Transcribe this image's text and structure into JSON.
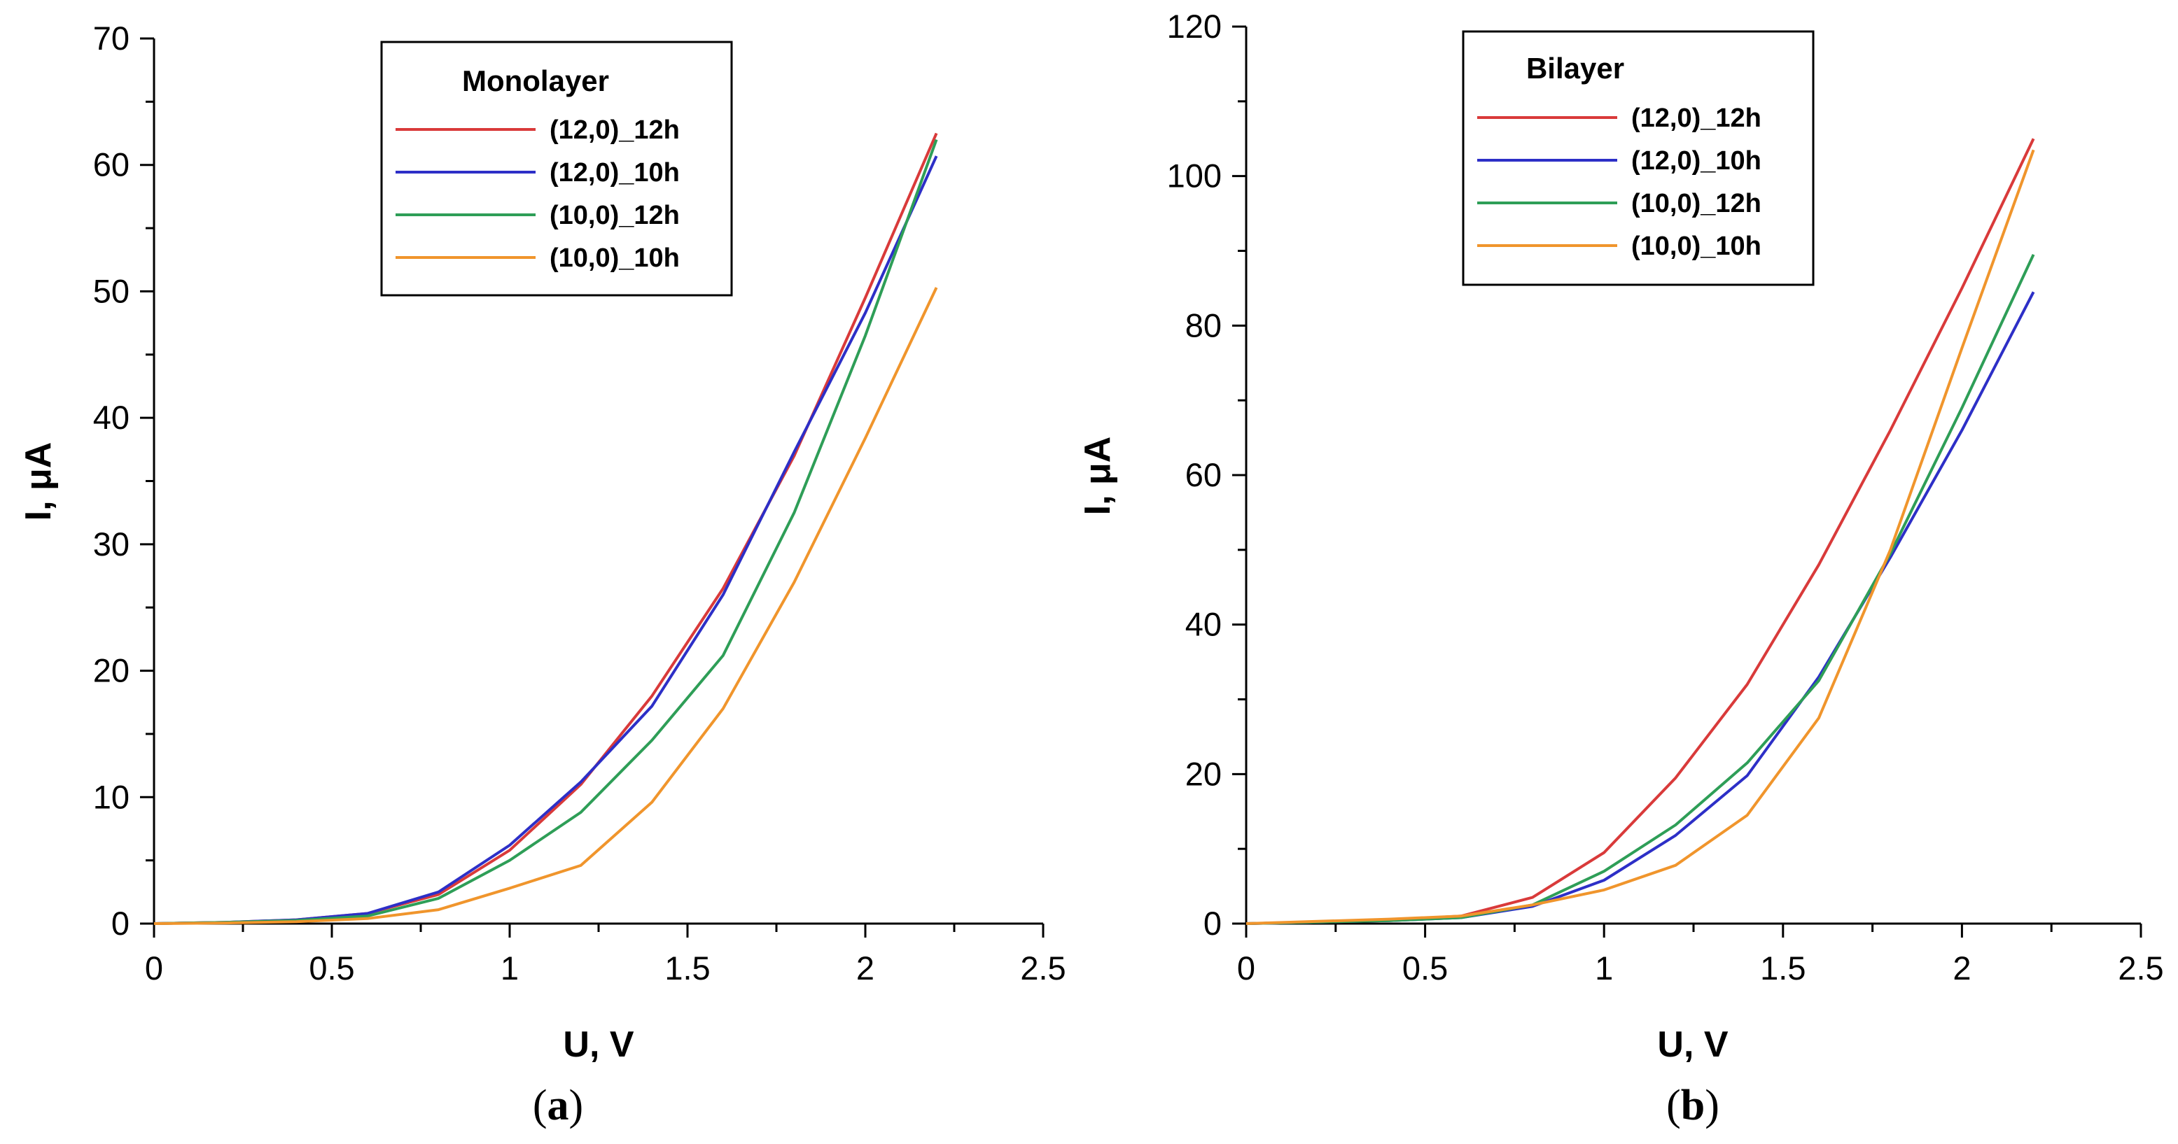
{
  "chart_data": [
    {
      "type": "line",
      "panel_label": "a",
      "legend_title": "Monolayer",
      "xlabel": "U, V",
      "ylabel": "I, μA",
      "xlim": [
        0,
        2.5
      ],
      "ylim": [
        0,
        70
      ],
      "xticks": [
        0,
        0.5,
        1,
        1.5,
        2,
        2.5
      ],
      "xtick_labels": [
        "0",
        "0.5",
        "1",
        "1.5",
        "2",
        "2.5"
      ],
      "yticks": [
        0,
        10,
        20,
        30,
        40,
        50,
        60,
        70
      ],
      "ytick_labels": [
        "0",
        "10",
        "20",
        "30",
        "40",
        "50",
        "60",
        "70"
      ],
      "x": [
        0,
        0.2,
        0.4,
        0.6,
        0.8,
        1.0,
        1.2,
        1.4,
        1.6,
        1.8,
        2.0,
        2.2
      ],
      "legend_position": "top-center",
      "series": [
        {
          "name": "(12,0)_12h",
          "color": "#d93a3a",
          "values": [
            0,
            0.1,
            0.3,
            0.8,
            2.3,
            5.8,
            11,
            18,
            26.5,
            37,
            49.5,
            62.5
          ]
        },
        {
          "name": "(12,0)_10h",
          "color": "#2d2fc7",
          "values": [
            0,
            0.1,
            0.3,
            0.8,
            2.5,
            6.2,
            11.2,
            17.2,
            26,
            37.3,
            48.3,
            60.7
          ]
        },
        {
          "name": "(10,0)_12h",
          "color": "#2e9e57",
          "values": [
            0,
            0.1,
            0.25,
            0.6,
            2.0,
            5.0,
            8.8,
            14.5,
            21.2,
            32.5,
            46.5,
            62
          ]
        },
        {
          "name": "(10,0)_10h",
          "color": "#f0952c",
          "values": [
            0,
            0.05,
            0.15,
            0.4,
            1.1,
            2.8,
            4.6,
            9.6,
            17,
            27,
            38.4,
            50.3
          ]
        }
      ]
    },
    {
      "type": "line",
      "panel_label": "b",
      "legend_title": "Bilayer",
      "xlabel": "U, V",
      "ylabel": "I, μA",
      "xlim": [
        0,
        2.5
      ],
      "ylim": [
        0,
        120
      ],
      "xticks": [
        0,
        0.5,
        1,
        1.5,
        2,
        2.5
      ],
      "xtick_labels": [
        "0",
        "0.5",
        "1",
        "1.5",
        "2",
        "2.5"
      ],
      "yticks": [
        0,
        20,
        40,
        60,
        80,
        100,
        120
      ],
      "ytick_labels": [
        "0",
        "20",
        "40",
        "60",
        "80",
        "100",
        "120"
      ],
      "x": [
        0,
        0.2,
        0.4,
        0.6,
        0.8,
        1.0,
        1.2,
        1.4,
        1.6,
        1.8,
        2.0,
        2.2
      ],
      "legend_position": "top-center",
      "series": [
        {
          "name": "(12,0)_12h",
          "color": "#d93a3a",
          "values": [
            0,
            0.2,
            0.5,
            1.0,
            3.5,
            9.5,
            19.5,
            32,
            48,
            66,
            85,
            105
          ]
        },
        {
          "name": "(12,0)_10h",
          "color": "#2d2fc7",
          "values": [
            0,
            0.2,
            0.4,
            0.8,
            2.3,
            5.8,
            11.8,
            19.8,
            33,
            49,
            66,
            84.5
          ]
        },
        {
          "name": "(10,0)_12h",
          "color": "#2e9e57",
          "values": [
            0,
            0.2,
            0.4,
            0.8,
            2.5,
            7.0,
            13.2,
            21.5,
            32.5,
            49.5,
            69,
            89.5
          ]
        },
        {
          "name": "(10,0)_10h",
          "color": "#f0952c",
          "values": [
            0,
            0.3,
            0.6,
            1.0,
            2.5,
            4.5,
            7.8,
            14.5,
            27.5,
            50,
            77,
            103.5
          ]
        }
      ]
    }
  ]
}
